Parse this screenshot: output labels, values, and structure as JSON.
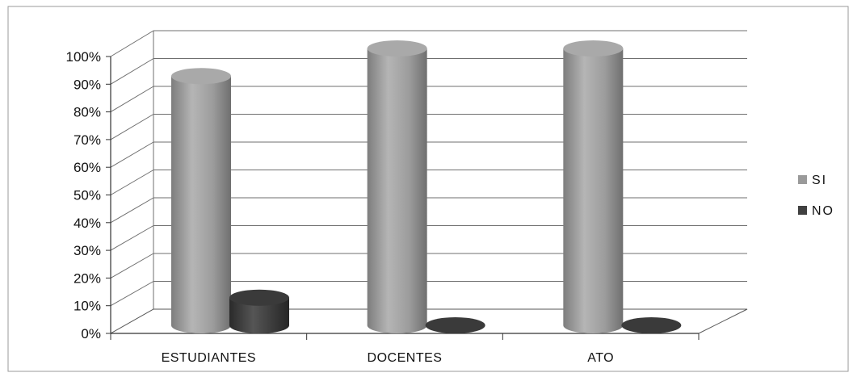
{
  "chart_data": {
    "type": "bar",
    "style": "3d-cylinder",
    "categories": [
      "ESTUDIANTES",
      "DOCENTES",
      "ATO"
    ],
    "series": [
      {
        "name": "SI",
        "values": [
          90,
          100,
          100
        ],
        "color": "#9a9a9a"
      },
      {
        "name": "NO",
        "values": [
          10,
          0,
          0
        ],
        "color": "#404040"
      }
    ],
    "yticks": [
      "0%",
      "10%",
      "20%",
      "30%",
      "40%",
      "50%",
      "60%",
      "70%",
      "80%",
      "90%",
      "100%"
    ],
    "ylim": [
      0,
      100
    ],
    "grid": true,
    "legend_position": "right"
  }
}
